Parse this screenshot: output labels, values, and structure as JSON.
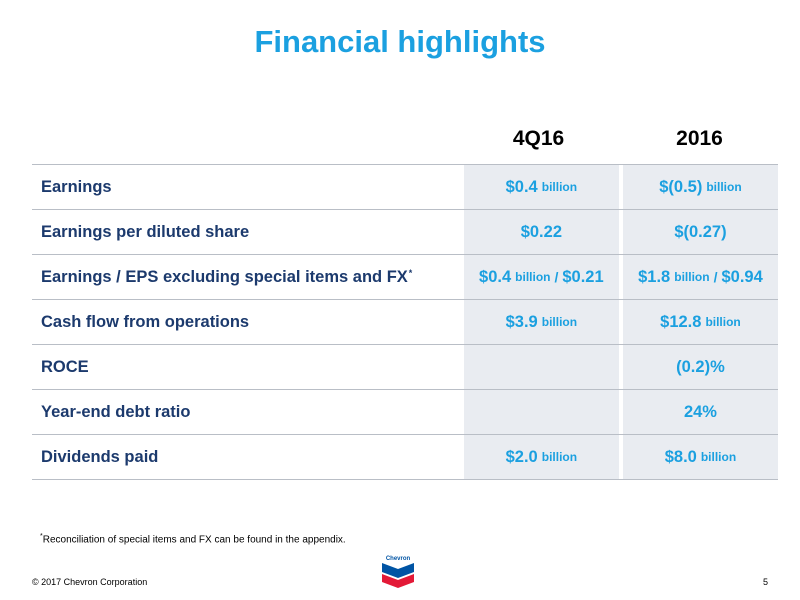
{
  "title": "Financial highlights",
  "columns": [
    "4Q16",
    "2016"
  ],
  "rows": [
    {
      "label": "Earnings",
      "q_value": "$0.4",
      "q_unit": "billion",
      "y_value": "$(0.5)",
      "y_unit": "billion"
    },
    {
      "label": "Earnings per diluted share",
      "q_value": "$0.22",
      "y_value": "$(0.27)"
    },
    {
      "label": "Earnings / EPS excluding special items and FX",
      "label_sup": "*",
      "q_value": "$0.4",
      "q_unit": "billion",
      "q_sep": "/",
      "q_value2": "$0.21",
      "y_value": "$1.8",
      "y_unit": "billion",
      "y_sep": "/",
      "y_value2": "$0.94"
    },
    {
      "label": "Cash flow from operations",
      "q_value": "$3.9",
      "q_unit": "billion",
      "y_value": "$12.8",
      "y_unit": "billion"
    },
    {
      "label": "ROCE",
      "q_value": "",
      "y_value": "(0.2)%"
    },
    {
      "label": "Year-end debt ratio",
      "q_value": "",
      "y_value": "24%"
    },
    {
      "label": "Dividends paid",
      "q_value": "$2.0",
      "q_unit": "billion",
      "y_value": "$8.0",
      "y_unit": "billion"
    }
  ],
  "footnote": {
    "marker": "*",
    "text": "Reconciliation of special items and FX can be found in the appendix."
  },
  "footer": {
    "copyright": "© 2017 Chevron Corporation",
    "page": "5",
    "logo_text": "Chevron"
  },
  "colors": {
    "accent": "#1BA0E0",
    "label": "#1c3a6d",
    "cell_bg": "#e9ecf1",
    "logo_blue": "#0054A4",
    "logo_red": "#E31937"
  }
}
